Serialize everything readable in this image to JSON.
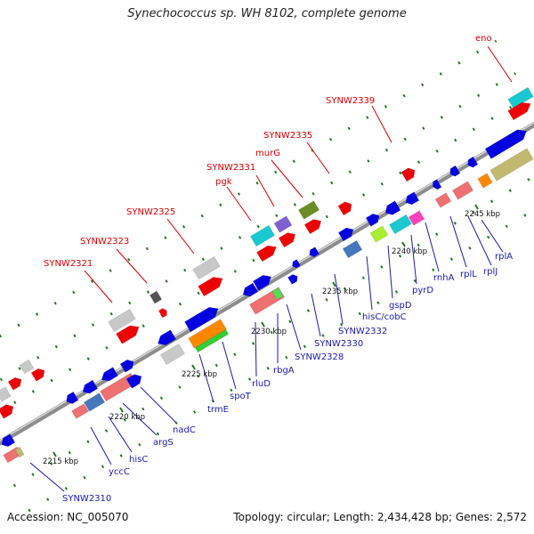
{
  "title": "Synechococcus sp. WH 8102, complete genome",
  "footer": {
    "accession": "Accession: NC_005070",
    "summary": "Topology: circular; Length: 2,434,428 bp; Genes: 2,572"
  },
  "colors": {
    "red_label": "#d60000",
    "blue_label": "#1a1aa6",
    "blue_feature": "#0000e0",
    "red_feature": "#ee0000",
    "gray_feature": "#c8c8c8",
    "cyan_feature": "#19c8d0",
    "backbone": "#8c8c8c",
    "dash": "#1e7a1e"
  },
  "scale_labels": [
    {
      "text": "2215 kbp"
    },
    {
      "text": "2220 kbp"
    },
    {
      "text": "2225 kbp"
    },
    {
      "text": "2230 kbp"
    },
    {
      "text": "2235 kbp"
    },
    {
      "text": "2240 kbp"
    },
    {
      "text": "2245 kbp"
    }
  ],
  "red_labels": [
    {
      "text": "eno"
    },
    {
      "text": "SYNW2339"
    },
    {
      "text": "SYNW2335"
    },
    {
      "text": "murG"
    },
    {
      "text": "SYNW2331"
    },
    {
      "text": "pgk"
    },
    {
      "text": "SYNW2325"
    },
    {
      "text": "SYNW2323"
    },
    {
      "text": "SYNW2321"
    }
  ],
  "blue_labels": [
    {
      "text": "rplA"
    },
    {
      "text": "rplJ"
    },
    {
      "text": "rplL"
    },
    {
      "text": "rnhA"
    },
    {
      "text": "pyrD"
    },
    {
      "text": "gspD"
    },
    {
      "text": "hisC/cobC"
    },
    {
      "text": "SYNW2332"
    },
    {
      "text": "SYNW2330"
    },
    {
      "text": "SYNW2328"
    },
    {
      "text": "rbgA"
    },
    {
      "text": "rluD"
    },
    {
      "text": "spoT"
    },
    {
      "text": "trmE"
    },
    {
      "text": "nadC"
    },
    {
      "text": "argS"
    },
    {
      "text": "hisC"
    },
    {
      "text": "yccC"
    },
    {
      "text": "SYNW2310"
    }
  ]
}
